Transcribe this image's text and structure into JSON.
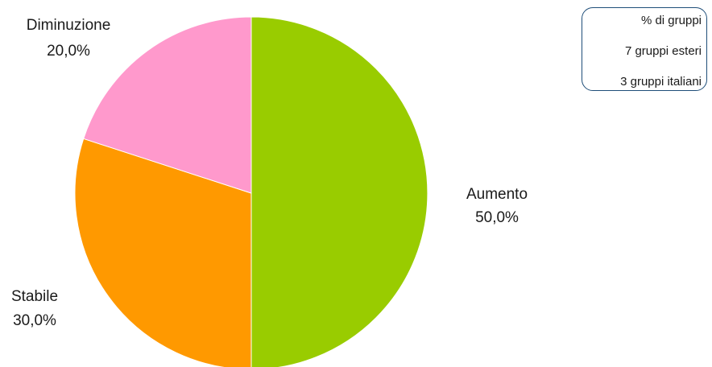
{
  "chart_data": {
    "type": "pie",
    "slices": [
      {
        "label": "Aumento",
        "value": 50.0,
        "value_label": "50,0%",
        "color": "#99cc00"
      },
      {
        "label": "Stabile",
        "value": 30.0,
        "value_label": "30,0%",
        "color": "#ff9900"
      },
      {
        "label": "Diminuzione",
        "value": 20.0,
        "value_label": "20,0%",
        "color": "#ff99cc"
      }
    ],
    "start": "12 o'clock",
    "direction": "clockwise",
    "legend_placement": "top-right"
  },
  "legend_note": {
    "line1": "% di gruppi",
    "line2": "7 gruppi esteri",
    "line3": "3 gruppi italiani"
  }
}
